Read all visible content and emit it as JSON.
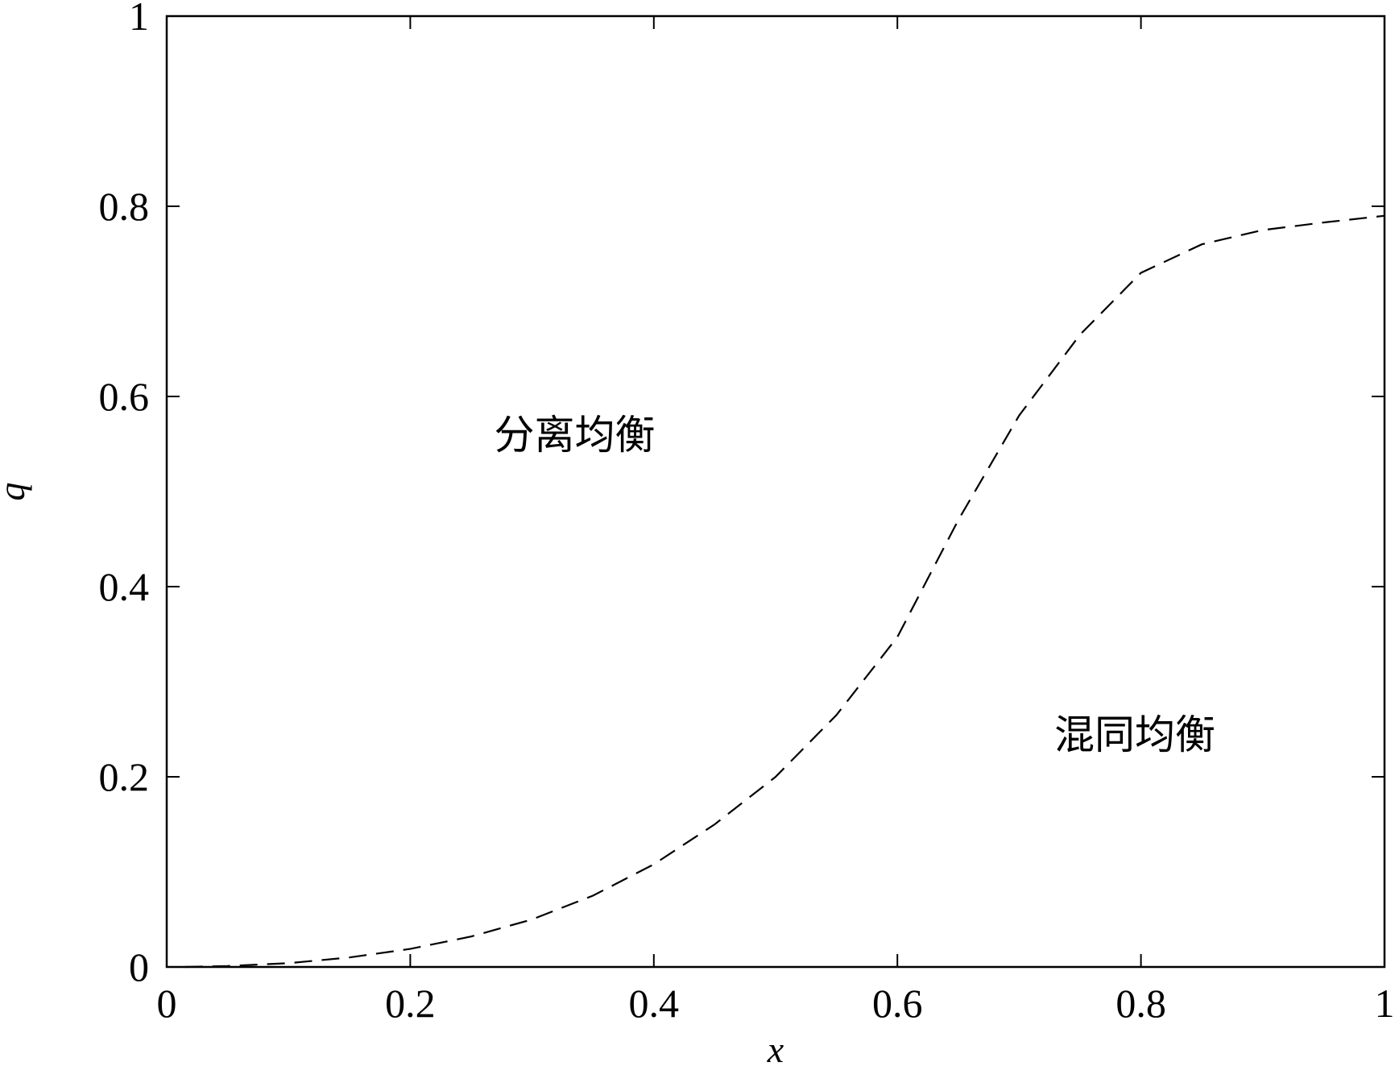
{
  "chart_data": {
    "type": "line",
    "xlabel": "x",
    "ylabel": "q",
    "annotations": [
      "分离均衡",
      "混同均衡"
    ],
    "x": [
      0.015,
      0.05,
      0.1,
      0.15,
      0.2,
      0.25,
      0.3,
      0.35,
      0.4,
      0.45,
      0.5,
      0.55,
      0.6,
      0.65,
      0.7,
      0.75,
      0.8,
      0.85,
      0.9,
      0.95,
      1.0
    ],
    "series": [
      {
        "color": "#000000",
        "dash": true,
        "values": [
          0,
          0.001,
          0.004,
          0.01,
          0.019,
          0.032,
          0.05,
          0.075,
          0.108,
          0.15,
          0.2,
          0.265,
          0.347,
          0.47,
          0.58,
          0.665,
          0.73,
          0.76,
          0.775,
          0.783,
          0.79
        ]
      }
    ],
    "xlim": [
      0,
      1
    ],
    "ylim": [
      0,
      1
    ],
    "xticks": [
      0,
      0.2,
      0.4,
      0.6,
      0.8,
      1
    ],
    "yticks": [
      0,
      0.2,
      0.4,
      0.6,
      0.8,
      1
    ],
    "grid": false
  }
}
